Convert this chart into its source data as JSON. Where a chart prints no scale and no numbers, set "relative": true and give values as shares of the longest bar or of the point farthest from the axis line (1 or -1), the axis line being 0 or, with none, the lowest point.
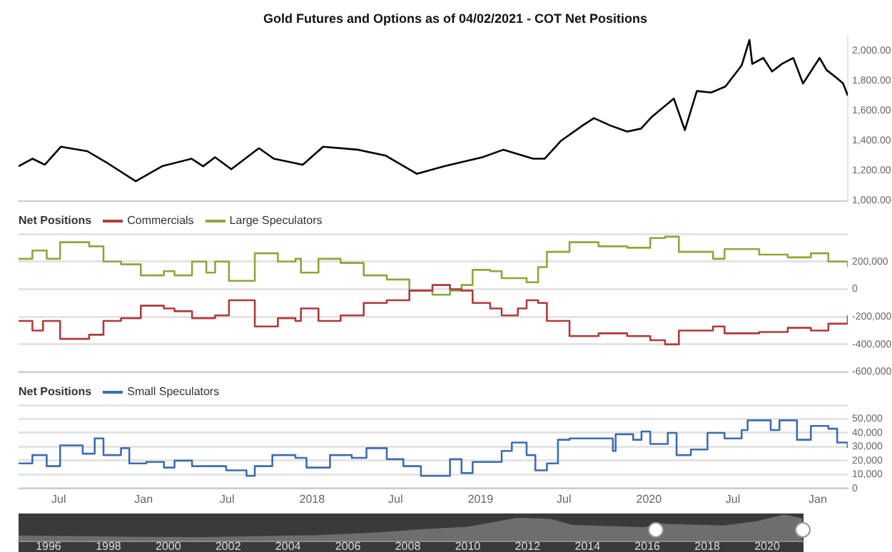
{
  "chart_data": [
    {
      "type": "line",
      "title": "Gold Futures and Options as of 04/02/2021 - COT Net Positions",
      "color": "#000000",
      "x": [
        "2016-04-05",
        "2016-05-05",
        "2016-06-01",
        "2016-07-06",
        "2016-09-01",
        "2016-10-10",
        "2016-12-15",
        "2017-02-10",
        "2017-04-15",
        "2017-05-10",
        "2017-06-05",
        "2017-07-10",
        "2017-09-08",
        "2017-10-10",
        "2017-12-12",
        "2018-01-25",
        "2018-04-10",
        "2018-06-10",
        "2018-08-16",
        "2018-10-15",
        "2019-01-05",
        "2019-02-20",
        "2019-04-25",
        "2019-05-20",
        "2019-06-25",
        "2019-08-10",
        "2019-09-04",
        "2019-10-10",
        "2019-11-15",
        "2019-12-15",
        "2020-01-08",
        "2020-02-24",
        "2020-03-19",
        "2020-04-14",
        "2020-05-15",
        "2020-06-15",
        "2020-07-20",
        "2020-08-06",
        "2020-08-12",
        "2020-09-05",
        "2020-09-24",
        "2020-10-15",
        "2020-11-09",
        "2020-11-30",
        "2021-01-05",
        "2021-01-20",
        "2021-02-10",
        "2021-02-25",
        "2021-03-07"
      ],
      "values": [
        1230,
        1280,
        1240,
        1360,
        1330,
        1260,
        1130,
        1230,
        1280,
        1230,
        1290,
        1210,
        1350,
        1280,
        1240,
        1360,
        1340,
        1300,
        1180,
        1230,
        1290,
        1340,
        1280,
        1280,
        1400,
        1500,
        1550,
        1500,
        1460,
        1480,
        1560,
        1680,
        1470,
        1730,
        1720,
        1760,
        1900,
        2070,
        1910,
        1950,
        1860,
        1910,
        1950,
        1780,
        1950,
        1870,
        1820,
        1780,
        1700
      ],
      "xlim": [
        "2016-04-05",
        "2021-03-07"
      ],
      "ylim": [
        1000,
        2100
      ],
      "yticks": [
        {
          "value": 1000,
          "label": "1,000.00"
        },
        {
          "value": 1200,
          "label": "1,200.00"
        },
        {
          "value": 1400,
          "label": "1,400.00"
        },
        {
          "value": 1600,
          "label": "1,600.00"
        },
        {
          "value": 1800,
          "label": "1,800.00"
        },
        {
          "value": 2000,
          "label": "2,000.00"
        }
      ],
      "tick_labels": "y"
    },
    {
      "type": "step",
      "legend_title": "Net Positions",
      "legend": "top left",
      "grid": "y",
      "tick_labels": "y",
      "xlim": [
        "2016-04-05",
        "2021-03-07"
      ],
      "ylim": [
        -600000,
        400000
      ],
      "yticks": [
        {
          "value": -600000,
          "label": "-600,000"
        },
        {
          "value": -400000,
          "label": "-400,000"
        },
        {
          "value": -200000,
          "label": "-200,000"
        },
        0,
        {
          "value": 200000,
          "label": "200,000"
        },
        {
          "value": 400000,
          "label": null
        }
      ],
      "series": [
        {
          "name": "Commercials",
          "color": "#b03a3a",
          "x": [
            "2016-04-05",
            "2016-05-05",
            "2016-05-28",
            "2016-07-04",
            "2016-09-05",
            "2016-10-06",
            "2016-11-13",
            "2016-12-26",
            "2017-02-14",
            "2017-03-09",
            "2017-04-16",
            "2017-06-05",
            "2017-07-05",
            "2017-08-30",
            "2017-10-19",
            "2017-11-26",
            "2017-12-08",
            "2018-01-15",
            "2018-03-04",
            "2018-04-23",
            "2018-06-12",
            "2018-07-31",
            "2018-09-19",
            "2018-10-27",
            "2018-11-21",
            "2018-12-15",
            "2019-01-22",
            "2019-02-16",
            "2019-03-23",
            "2019-04-11",
            "2019-05-06",
            "2019-05-25",
            "2019-07-13",
            "2019-09-14",
            "2019-11-15",
            "2020-01-04",
            "2020-02-05",
            "2020-03-06",
            "2020-05-19",
            "2020-06-13",
            "2020-08-27",
            "2020-10-28",
            "2020-12-17",
            "2021-01-24",
            "2021-03-07"
          ],
          "values": [
            -230000,
            -300000,
            -230000,
            -360000,
            -330000,
            -230000,
            -210000,
            -120000,
            -140000,
            -160000,
            -210000,
            -190000,
            -80000,
            -270000,
            -210000,
            -230000,
            -140000,
            -230000,
            -190000,
            -100000,
            -80000,
            -10000,
            30000,
            0,
            -10000,
            -100000,
            -140000,
            -190000,
            -140000,
            -80000,
            -100000,
            -230000,
            -340000,
            -320000,
            -340000,
            -370000,
            -400000,
            -300000,
            -270000,
            -320000,
            -310000,
            -280000,
            -300000,
            -250000,
            -190000
          ]
        },
        {
          "name": "Large Speculators",
          "color": "#8aa83c",
          "x": [
            "2016-04-05",
            "2016-05-05",
            "2016-06-05",
            "2016-07-04",
            "2016-09-05",
            "2016-10-06",
            "2016-11-13",
            "2016-12-26",
            "2017-02-14",
            "2017-03-09",
            "2017-04-16",
            "2017-05-17",
            "2017-06-05",
            "2017-07-05",
            "2017-08-30",
            "2017-10-19",
            "2017-11-26",
            "2017-12-08",
            "2018-01-15",
            "2018-03-04",
            "2018-04-23",
            "2018-06-12",
            "2018-07-31",
            "2018-09-19",
            "2018-10-27",
            "2018-11-21",
            "2018-12-15",
            "2019-01-22",
            "2019-02-16",
            "2019-03-23",
            "2019-04-11",
            "2019-05-06",
            "2019-05-25",
            "2019-07-13",
            "2019-09-14",
            "2019-11-15",
            "2020-01-04",
            "2020-02-05",
            "2020-03-06",
            "2020-05-19",
            "2020-06-13",
            "2020-08-27",
            "2020-10-28",
            "2020-12-17",
            "2021-01-24",
            "2021-03-07"
          ],
          "values": [
            220000,
            280000,
            220000,
            340000,
            310000,
            200000,
            180000,
            100000,
            130000,
            100000,
            200000,
            120000,
            200000,
            60000,
            260000,
            200000,
            220000,
            120000,
            220000,
            190000,
            100000,
            70000,
            -10000,
            -40000,
            -10000,
            30000,
            140000,
            130000,
            80000,
            80000,
            50000,
            160000,
            270000,
            340000,
            310000,
            300000,
            370000,
            380000,
            270000,
            220000,
            290000,
            250000,
            230000,
            260000,
            200000,
            160000
          ]
        }
      ]
    },
    {
      "type": "step",
      "legend_title": "Net Positions",
      "legend": "top left",
      "grid": "y",
      "xlim": [
        "2016-04-05",
        "2021-03-07"
      ],
      "ylim": [
        0,
        60000
      ],
      "yticks": [
        0,
        {
          "value": 10000,
          "label": "10,000"
        },
        {
          "value": 20000,
          "label": "20,000"
        },
        {
          "value": 30000,
          "label": "30,000"
        },
        {
          "value": 40000,
          "label": "40,000"
        },
        {
          "value": 50000,
          "label": "50,000"
        },
        {
          "value": 60000,
          "label": null
        }
      ],
      "xticks": [
        {
          "value": "2016-07-01",
          "label": "Jul"
        },
        {
          "value": "2017-01-01",
          "label": "Jan"
        },
        {
          "value": "2017-07-01",
          "label": "Jul"
        },
        {
          "value": "2018-01-01",
          "label": "2018"
        },
        {
          "value": "2018-07-01",
          "label": "Jul"
        },
        {
          "value": "2019-01-01",
          "label": "2019"
        },
        {
          "value": "2019-07-01",
          "label": "Jul"
        },
        {
          "value": "2020-01-01",
          "label": "2020"
        },
        {
          "value": "2020-07-01",
          "label": "Jul"
        },
        {
          "value": "2021-01-01",
          "label": "Jan"
        }
      ],
      "series": [
        {
          "name": "Small Speculators",
          "color": "#3d6db0",
          "x": [
            "2016-04-05",
            "2016-05-05",
            "2016-06-05",
            "2016-07-04",
            "2016-08-22",
            "2016-09-17",
            "2016-10-06",
            "2016-11-13",
            "2016-12-01",
            "2017-01-07",
            "2017-02-14",
            "2017-03-09",
            "2017-04-16",
            "2017-06-05",
            "2017-06-29",
            "2017-08-12",
            "2017-08-30",
            "2017-10-07",
            "2017-11-26",
            "2017-12-20",
            "2018-02-09",
            "2018-03-28",
            "2018-04-29",
            "2018-06-12",
            "2018-07-18",
            "2018-08-25",
            "2018-10-27",
            "2018-11-21",
            "2018-12-15",
            "2019-02-16",
            "2019-03-10",
            "2019-04-11",
            "2019-04-30",
            "2019-05-25",
            "2019-06-18",
            "2019-07-13",
            "2019-10-08",
            "2019-10-15",
            "2019-10-21",
            "2019-11-28",
            "2019-12-16",
            "2020-01-04",
            "2020-02-11",
            "2020-03-01",
            "2020-04-01",
            "2020-05-07",
            "2020-06-13",
            "2020-07-20",
            "2020-08-02",
            "2020-08-27",
            "2020-09-21",
            "2020-10-10",
            "2020-11-17",
            "2020-12-17",
            "2021-01-24",
            "2021-02-12",
            "2021-03-07"
          ],
          "values": [
            18000,
            24000,
            16000,
            31000,
            25000,
            36000,
            24000,
            29000,
            18000,
            19000,
            15000,
            20000,
            16000,
            16000,
            13000,
            9000,
            16000,
            24000,
            22000,
            15000,
            24000,
            22000,
            29000,
            21000,
            16000,
            9000,
            21000,
            11000,
            19000,
            27000,
            33000,
            24000,
            13000,
            18000,
            35000,
            36000,
            36000,
            27000,
            39000,
            35000,
            41000,
            32000,
            40000,
            24000,
            28000,
            40000,
            36000,
            42000,
            49000,
            49000,
            42000,
            49000,
            35000,
            45000,
            43000,
            33000,
            29000
          ]
        }
      ]
    },
    {
      "type": "area",
      "relative": true,
      "color": "#6e6e6e",
      "tick_labels": "x",
      "x": [
        "1995-01-01",
        "1997-01-01",
        "1999-01-01",
        "2001-01-01",
        "2003-01-01",
        "2005-01-01",
        "2007-01-01",
        "2008-06-01",
        "2010-01-01",
        "2011-09-01",
        "2012-10-01",
        "2013-07-01",
        "2015-12-01",
        "2016-07-01",
        "2018-08-01",
        "2019-09-01",
        "2020-08-01",
        "2021-03-07"
      ],
      "values": [
        0.19,
        0.17,
        0.14,
        0.13,
        0.17,
        0.21,
        0.31,
        0.43,
        0.53,
        0.87,
        0.83,
        0.6,
        0.51,
        0.64,
        0.58,
        0.74,
        1,
        0.84
      ],
      "xlim": [
        "1995-01-01",
        "2021-03-20"
      ],
      "xticks": [
        {
          "value": "1996-01-01",
          "label": "1996"
        },
        {
          "value": "1998-01-01",
          "label": "1998"
        },
        {
          "value": "2000-01-01",
          "label": "2000"
        },
        {
          "value": "2002-01-01",
          "label": "2002"
        },
        {
          "value": "2004-01-01",
          "label": "2004"
        },
        {
          "value": "2006-01-01",
          "label": "2006"
        },
        {
          "value": "2008-01-01",
          "label": "2008"
        },
        {
          "value": "2010-01-01",
          "label": "2010"
        },
        {
          "value": "2012-01-01",
          "label": "2012"
        },
        {
          "value": "2014-01-01",
          "label": "2014"
        },
        {
          "value": "2016-01-01",
          "label": "2016"
        },
        {
          "value": "2018-01-01",
          "label": "2018"
        },
        {
          "value": "2020-01-01",
          "label": "2020"
        }
      ]
    }
  ]
}
